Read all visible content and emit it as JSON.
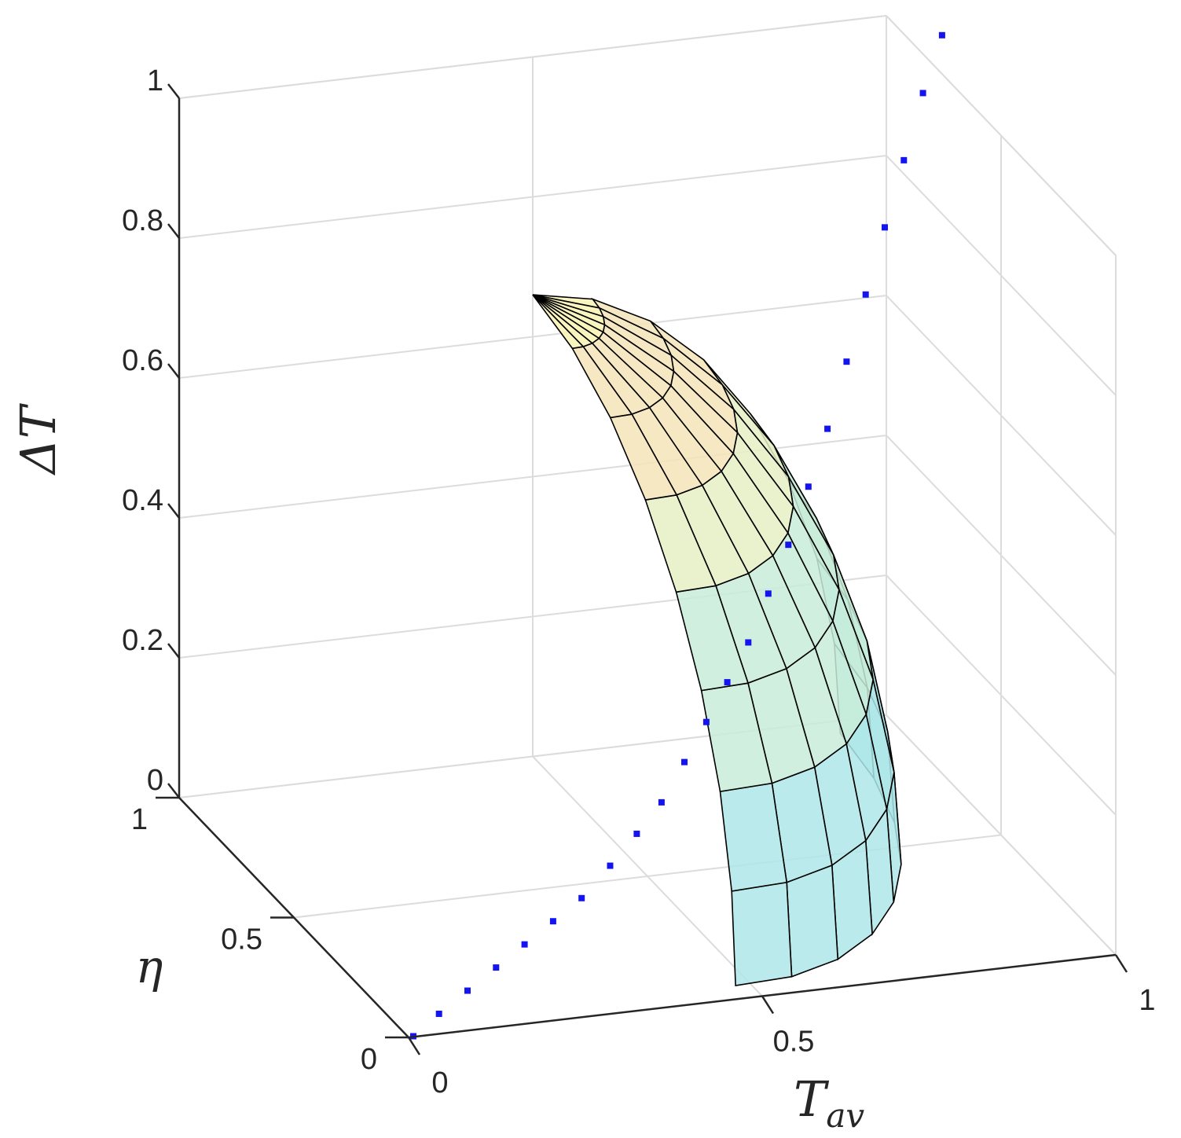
{
  "chart_data": {
    "type": "surface3d",
    "axes": {
      "x": {
        "label": "T",
        "label_subscript": "av",
        "range": [
          0,
          1
        ],
        "ticks": [
          "0",
          "0.5",
          "1"
        ]
      },
      "y": {
        "label": "η",
        "range": [
          0,
          1
        ],
        "ticks": [
          "0",
          "0.5",
          "1"
        ]
      },
      "z": {
        "label": "ΔT",
        "range": [
          0,
          1
        ],
        "ticks": [
          "0",
          "0.2",
          "0.4",
          "0.6",
          "0.8",
          "1"
        ]
      }
    },
    "grid": true,
    "surface": {
      "description_formula": "ΔT = sqrt(T_av^2 + η^2 ... ) bounded dome, apex at T_av=0.5, η=1, ΔT=0.5",
      "colormap": [
        "#aee6e8",
        "#c8ecd8",
        "#e6eec4",
        "#f5e4b8",
        "#f9f2b4"
      ],
      "edge_color": "#000000",
      "rows": 8,
      "cols": 8
    },
    "scatter": {
      "color": "#1414f0",
      "marker": "square",
      "points": [
        [
          0.0,
          0.05,
          0.0
        ],
        [
          0.03,
          0.12,
          0.02
        ],
        [
          0.06,
          0.22,
          0.04
        ],
        [
          0.09,
          0.32,
          0.06
        ],
        [
          0.12,
          0.42,
          0.08
        ],
        [
          0.15,
          0.52,
          0.1
        ],
        [
          0.18,
          0.62,
          0.12
        ],
        [
          0.21,
          0.72,
          0.15
        ],
        [
          0.24,
          0.8,
          0.18
        ],
        [
          0.27,
          0.86,
          0.21
        ],
        [
          0.3,
          0.9,
          0.25
        ],
        [
          0.33,
          0.93,
          0.29
        ],
        [
          0.36,
          0.95,
          0.33
        ],
        [
          0.39,
          0.97,
          0.37
        ],
        [
          0.42,
          0.98,
          0.42
        ],
        [
          0.45,
          0.99,
          0.47
        ],
        [
          0.48,
          1.0,
          0.53
        ],
        [
          0.51,
          1.0,
          0.59
        ],
        [
          0.54,
          1.0,
          0.66
        ],
        [
          0.57,
          1.0,
          0.73
        ],
        [
          0.6,
          1.0,
          0.8
        ],
        [
          0.63,
          1.0,
          0.87
        ],
        [
          0.66,
          1.0,
          0.94
        ],
        [
          0.69,
          1.0,
          1.0
        ]
      ]
    }
  }
}
